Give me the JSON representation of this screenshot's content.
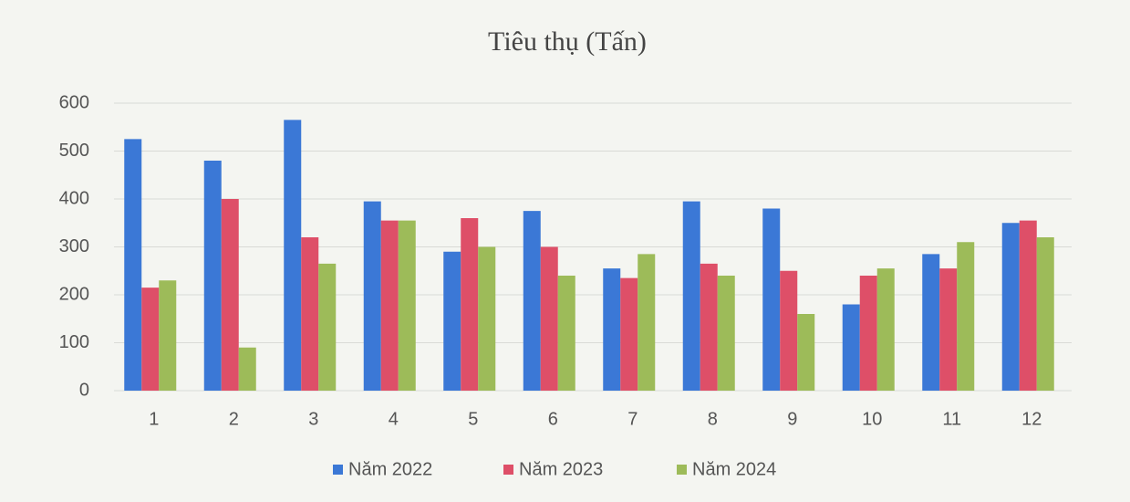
{
  "chart_data": {
    "type": "bar",
    "title": "Tiêu thụ (Tấn)",
    "categories": [
      "1",
      "2",
      "3",
      "4",
      "5",
      "6",
      "7",
      "8",
      "9",
      "10",
      "11",
      "12"
    ],
    "series": [
      {
        "name": "Năm 2022",
        "color": "#3b78d6",
        "values": [
          525,
          480,
          565,
          395,
          290,
          375,
          255,
          395,
          380,
          180,
          285,
          350
        ]
      },
      {
        "name": "Năm 2023",
        "color": "#de4f68",
        "values": [
          215,
          400,
          320,
          355,
          360,
          300,
          235,
          265,
          250,
          240,
          255,
          355
        ]
      },
      {
        "name": "Năm 2024",
        "color": "#9dbb59",
        "values": [
          230,
          90,
          265,
          355,
          300,
          240,
          285,
          240,
          160,
          255,
          310,
          320
        ]
      }
    ],
    "ylim": [
      0,
      600
    ],
    "yticks": [
      0,
      100,
      200,
      300,
      400,
      500,
      600
    ],
    "grid": true,
    "legend": "bottom"
  }
}
